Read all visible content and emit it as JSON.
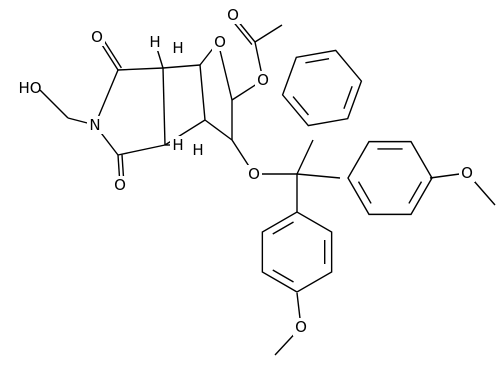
{
  "atoms": [
    {
      "label": "O"
    },
    {
      "label": "O"
    },
    {
      "label": "O"
    },
    {
      "label": "O"
    },
    {
      "label": "N"
    },
    {
      "label": "O"
    },
    {
      "label": "HO"
    },
    {
      "label": "H"
    },
    {
      "label": "H"
    },
    {
      "label": "H"
    },
    {
      "label": "H"
    },
    {
      "label": "O"
    },
    {
      "label": "O"
    },
    {
      "label": "O"
    }
  ]
}
